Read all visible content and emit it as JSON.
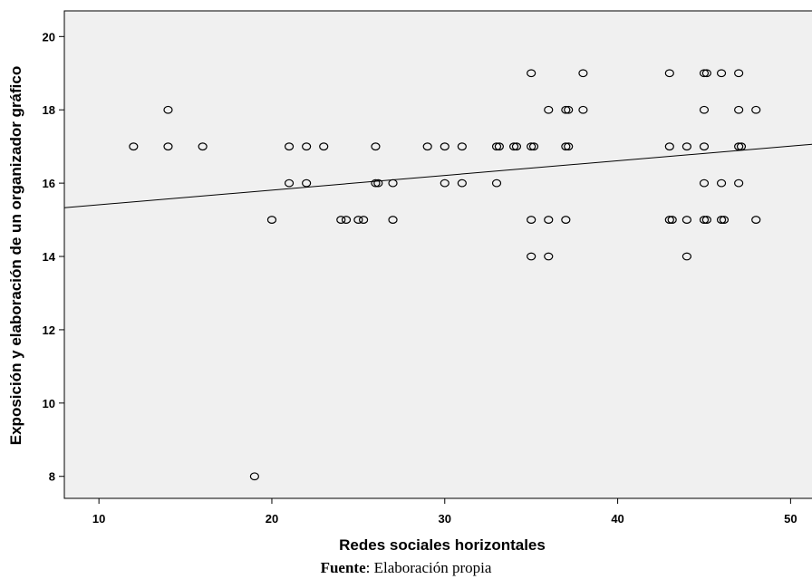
{
  "chart_data": {
    "type": "scatter",
    "title": "",
    "xlabel": "Redes sociales horizontales",
    "ylabel": "Exposición y elaboración de un organizador gráfico",
    "xlim": [
      8,
      51.5
    ],
    "ylim": [
      7.4,
      20.7
    ],
    "xticks": [
      10,
      20,
      30,
      40,
      50
    ],
    "yticks": [
      8,
      10,
      12,
      14,
      16,
      18,
      20
    ],
    "xtick_labels": [
      "10",
      "20",
      "30",
      "40",
      "50"
    ],
    "ytick_labels": [
      "8",
      "10",
      "12",
      "14",
      "16",
      "18",
      "20"
    ],
    "grid": false,
    "background": "#f0f0f0",
    "marker_color": "#000000",
    "points": [
      {
        "x": 12,
        "y": 17
      },
      {
        "x": 14,
        "y": 18
      },
      {
        "x": 14,
        "y": 17
      },
      {
        "x": 16,
        "y": 17
      },
      {
        "x": 19,
        "y": 8
      },
      {
        "x": 20,
        "y": 15
      },
      {
        "x": 21,
        "y": 17
      },
      {
        "x": 21,
        "y": 16
      },
      {
        "x": 22,
        "y": 17
      },
      {
        "x": 22,
        "y": 16
      },
      {
        "x": 23,
        "y": 17
      },
      {
        "x": 24,
        "y": 15
      },
      {
        "x": 24.3,
        "y": 15
      },
      {
        "x": 25,
        "y": 15
      },
      {
        "x": 25.3,
        "y": 15
      },
      {
        "x": 26,
        "y": 17
      },
      {
        "x": 26,
        "y": 16
      },
      {
        "x": 26.15,
        "y": 16
      },
      {
        "x": 27,
        "y": 16
      },
      {
        "x": 27,
        "y": 15
      },
      {
        "x": 29,
        "y": 17
      },
      {
        "x": 30,
        "y": 17
      },
      {
        "x": 30,
        "y": 16
      },
      {
        "x": 31,
        "y": 17
      },
      {
        "x": 31,
        "y": 16
      },
      {
        "x": 33,
        "y": 17
      },
      {
        "x": 33.15,
        "y": 17
      },
      {
        "x": 33,
        "y": 16
      },
      {
        "x": 34,
        "y": 17
      },
      {
        "x": 34.15,
        "y": 17
      },
      {
        "x": 35,
        "y": 19
      },
      {
        "x": 35,
        "y": 17
      },
      {
        "x": 35.15,
        "y": 17
      },
      {
        "x": 35,
        "y": 15
      },
      {
        "x": 35,
        "y": 14
      },
      {
        "x": 36,
        "y": 18
      },
      {
        "x": 36,
        "y": 15
      },
      {
        "x": 36,
        "y": 14
      },
      {
        "x": 37,
        "y": 18
      },
      {
        "x": 37.15,
        "y": 18
      },
      {
        "x": 37,
        "y": 17
      },
      {
        "x": 37.15,
        "y": 17
      },
      {
        "x": 37,
        "y": 15
      },
      {
        "x": 38,
        "y": 19
      },
      {
        "x": 38,
        "y": 18
      },
      {
        "x": 43,
        "y": 19
      },
      {
        "x": 43,
        "y": 17
      },
      {
        "x": 43,
        "y": 15
      },
      {
        "x": 43.15,
        "y": 15
      },
      {
        "x": 44,
        "y": 17
      },
      {
        "x": 44,
        "y": 15
      },
      {
        "x": 44,
        "y": 14
      },
      {
        "x": 45,
        "y": 19
      },
      {
        "x": 45.15,
        "y": 19
      },
      {
        "x": 45,
        "y": 18
      },
      {
        "x": 45,
        "y": 17
      },
      {
        "x": 45,
        "y": 16
      },
      {
        "x": 45,
        "y": 15
      },
      {
        "x": 45.15,
        "y": 15
      },
      {
        "x": 46,
        "y": 19
      },
      {
        "x": 46,
        "y": 16
      },
      {
        "x": 46,
        "y": 15
      },
      {
        "x": 46.15,
        "y": 15
      },
      {
        "x": 47,
        "y": 19
      },
      {
        "x": 47,
        "y": 18
      },
      {
        "x": 47,
        "y": 17
      },
      {
        "x": 47.15,
        "y": 17
      },
      {
        "x": 47,
        "y": 16
      },
      {
        "x": 48,
        "y": 18
      },
      {
        "x": 48,
        "y": 15
      }
    ],
    "fit_line": {
      "x": [
        8,
        51.5
      ],
      "y": [
        15.33,
        17.07
      ]
    }
  },
  "caption": {
    "label": "Fuente",
    "text": ": Elaboración propia"
  }
}
